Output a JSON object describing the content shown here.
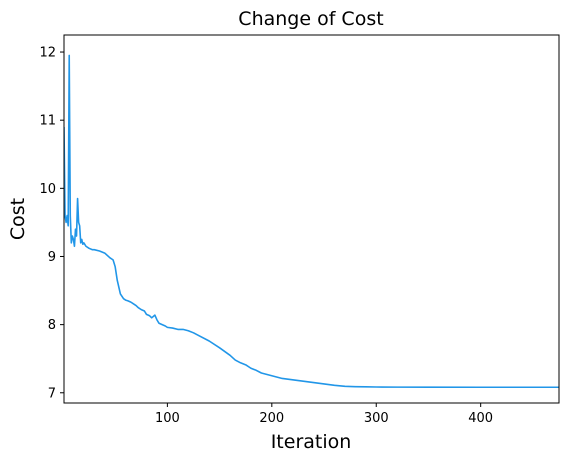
{
  "chart_data": {
    "type": "line",
    "title": "Change of Cost",
    "xlabel": "Iteration",
    "ylabel": "Cost",
    "xlim": [
      1,
      475
    ],
    "ylim": [
      6.85,
      12.25
    ],
    "xticks": [
      100,
      200,
      300,
      400
    ],
    "yticks": [
      7,
      8,
      9,
      10,
      11,
      12
    ],
    "grid": false,
    "legend": "none",
    "line_color": "#2196e8",
    "series": [
      {
        "x": [
          1,
          2,
          3,
          4,
          5,
          6,
          7,
          8,
          9,
          10,
          11,
          12,
          13,
          14,
          15,
          16,
          17,
          18,
          19,
          20,
          22,
          25,
          28,
          30,
          35,
          40,
          45,
          48,
          50,
          52,
          55,
          58,
          60,
          62,
          65,
          68,
          70,
          72,
          75,
          78,
          80,
          83,
          85,
          88,
          90,
          92,
          95,
          98,
          100,
          105,
          110,
          115,
          120,
          125,
          130,
          140,
          150,
          160,
          165,
          170,
          175,
          180,
          185,
          190,
          195,
          200,
          210,
          220,
          230,
          240,
          250,
          260,
          270,
          280,
          290,
          300,
          320,
          350,
          400,
          450,
          475
        ],
        "y": [
          10.9,
          9.6,
          9.5,
          9.6,
          9.45,
          11.95,
          9.6,
          9.2,
          9.3,
          9.25,
          9.15,
          9.4,
          9.3,
          9.85,
          9.5,
          9.45,
          9.2,
          9.25,
          9.18,
          9.2,
          9.15,
          9.12,
          9.1,
          9.1,
          9.08,
          9.05,
          8.98,
          8.95,
          8.85,
          8.65,
          8.45,
          8.38,
          8.36,
          8.35,
          8.33,
          8.3,
          8.28,
          8.25,
          8.22,
          8.2,
          8.15,
          8.13,
          8.1,
          8.14,
          8.07,
          8.02,
          8.0,
          7.98,
          7.96,
          7.95,
          7.93,
          7.93,
          7.91,
          7.88,
          7.84,
          7.76,
          7.66,
          7.55,
          7.48,
          7.44,
          7.41,
          7.36,
          7.33,
          7.29,
          7.27,
          7.25,
          7.21,
          7.19,
          7.17,
          7.15,
          7.13,
          7.11,
          7.095,
          7.09,
          7.087,
          7.085,
          7.083,
          7.082,
          7.081,
          7.081,
          7.081
        ]
      }
    ]
  }
}
